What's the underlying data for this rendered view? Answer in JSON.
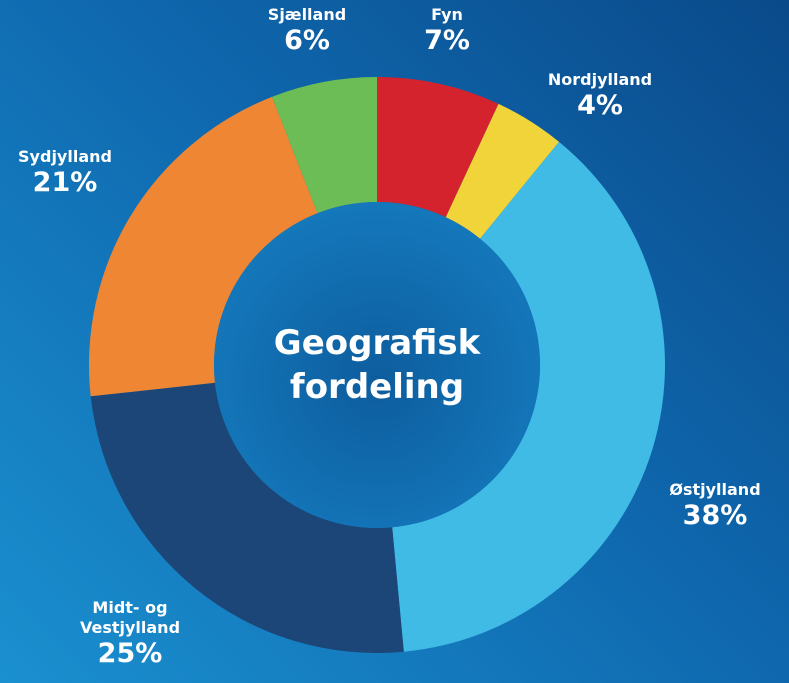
{
  "chart_data": {
    "type": "donut",
    "title": "Geografisk fordeling",
    "categories": [
      "Fyn",
      "Nordjylland",
      "Østjylland",
      "Midt- og Vestjylland",
      "Sydjylland",
      "Sjælland"
    ],
    "values": [
      7,
      4,
      38,
      25,
      21,
      6
    ],
    "value_labels": [
      "7%",
      "4%",
      "38%",
      "25%",
      "21%",
      "6%"
    ],
    "colors": [
      "#d4232d",
      "#f0d43a",
      "#3fbbe6",
      "#1b4677",
      "#ef8634",
      "#6cbd55"
    ]
  }
}
